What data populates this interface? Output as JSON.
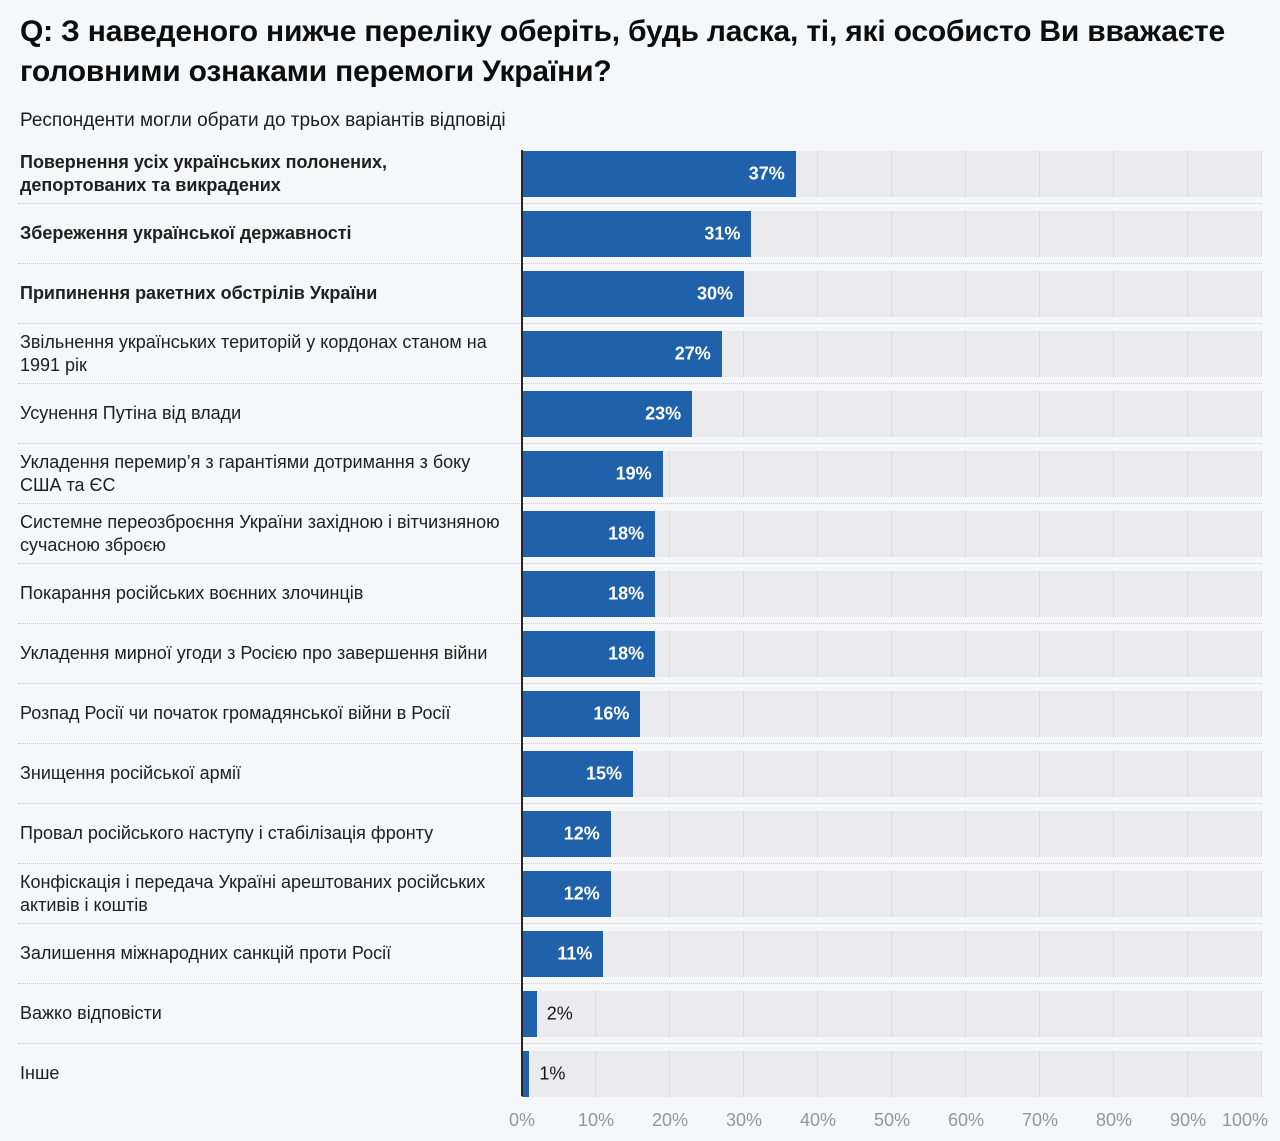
{
  "colors": {
    "bg": "#f6f7f8",
    "bar": "#2061ac",
    "track": "#ebebed",
    "grid": "#dcdcde",
    "sep": "#c7c8ca",
    "zeroLine": "#26272b",
    "axisText": "#95969a",
    "valueIn": "#ffffff",
    "valueOut": "#141414"
  },
  "chart_data": {
    "type": "bar",
    "orientation": "horizontal",
    "title": "Q: З наведеного нижче переліку оберіть, будь ласка, ті, які особисто Ви вважаєте головними ознаками перемоги України?",
    "subtitle": "Респонденти могли обрати до трьох варіантів відповіді",
    "xlabel": "",
    "ylabel": "",
    "xlim": [
      0,
      100
    ],
    "x_ticks": [
      "0%",
      "10%",
      "20%",
      "30%",
      "40%",
      "50%",
      "60%",
      "70%",
      "80%",
      "90%",
      "100%"
    ],
    "gridlines": "vertical, every 10%",
    "legend": "none",
    "items": [
      {
        "label": "Повернення усіх українських полонених, депортованих та викрадених",
        "value": 37,
        "value_label": "37%",
        "bold": true
      },
      {
        "label": "Збереження української державності",
        "value": 31,
        "value_label": "31%",
        "bold": true
      },
      {
        "label": "Припинення ракетних обстрілів України",
        "value": 30,
        "value_label": "30%",
        "bold": true
      },
      {
        "label": "Звільнення українських територій у кордонах станом на 1991 рік",
        "value": 27,
        "value_label": "27%",
        "bold": false
      },
      {
        "label": "Усунення Путіна від влади",
        "value": 23,
        "value_label": "23%",
        "bold": false
      },
      {
        "label": "Укладення перемир’я з гарантіями дотримання з боку США та ЄС",
        "value": 19,
        "value_label": "19%",
        "bold": false
      },
      {
        "label": "Системне переозброєння України західною і вітчизняною сучасною зброєю",
        "value": 18,
        "value_label": "18%",
        "bold": false
      },
      {
        "label": "Покарання російських воєнних злочинців",
        "value": 18,
        "value_label": "18%",
        "bold": false
      },
      {
        "label": "Укладення мирної угоди з Росією про завершення війни",
        "value": 18,
        "value_label": "18%",
        "bold": false
      },
      {
        "label": "Розпад Росії чи початок громадянської війни в Росії",
        "value": 16,
        "value_label": "16%",
        "bold": false
      },
      {
        "label": "Знищення російської армії",
        "value": 15,
        "value_label": "15%",
        "bold": false
      },
      {
        "label": "Провал російського наступу і стабілізація фронту",
        "value": 12,
        "value_label": "12%",
        "bold": false
      },
      {
        "label": "Конфіскація і передача Україні арештованих російських активів і коштів",
        "value": 12,
        "value_label": "12%",
        "bold": false
      },
      {
        "label": "Залишення міжнародних санкцій проти Росії",
        "value": 11,
        "value_label": "11%",
        "bold": false
      },
      {
        "label": "Важко відповісти",
        "value": 2,
        "value_label": "2%",
        "bold": false
      },
      {
        "label": "Інше",
        "value": 1,
        "value_label": "1%",
        "bold": false
      }
    ]
  }
}
